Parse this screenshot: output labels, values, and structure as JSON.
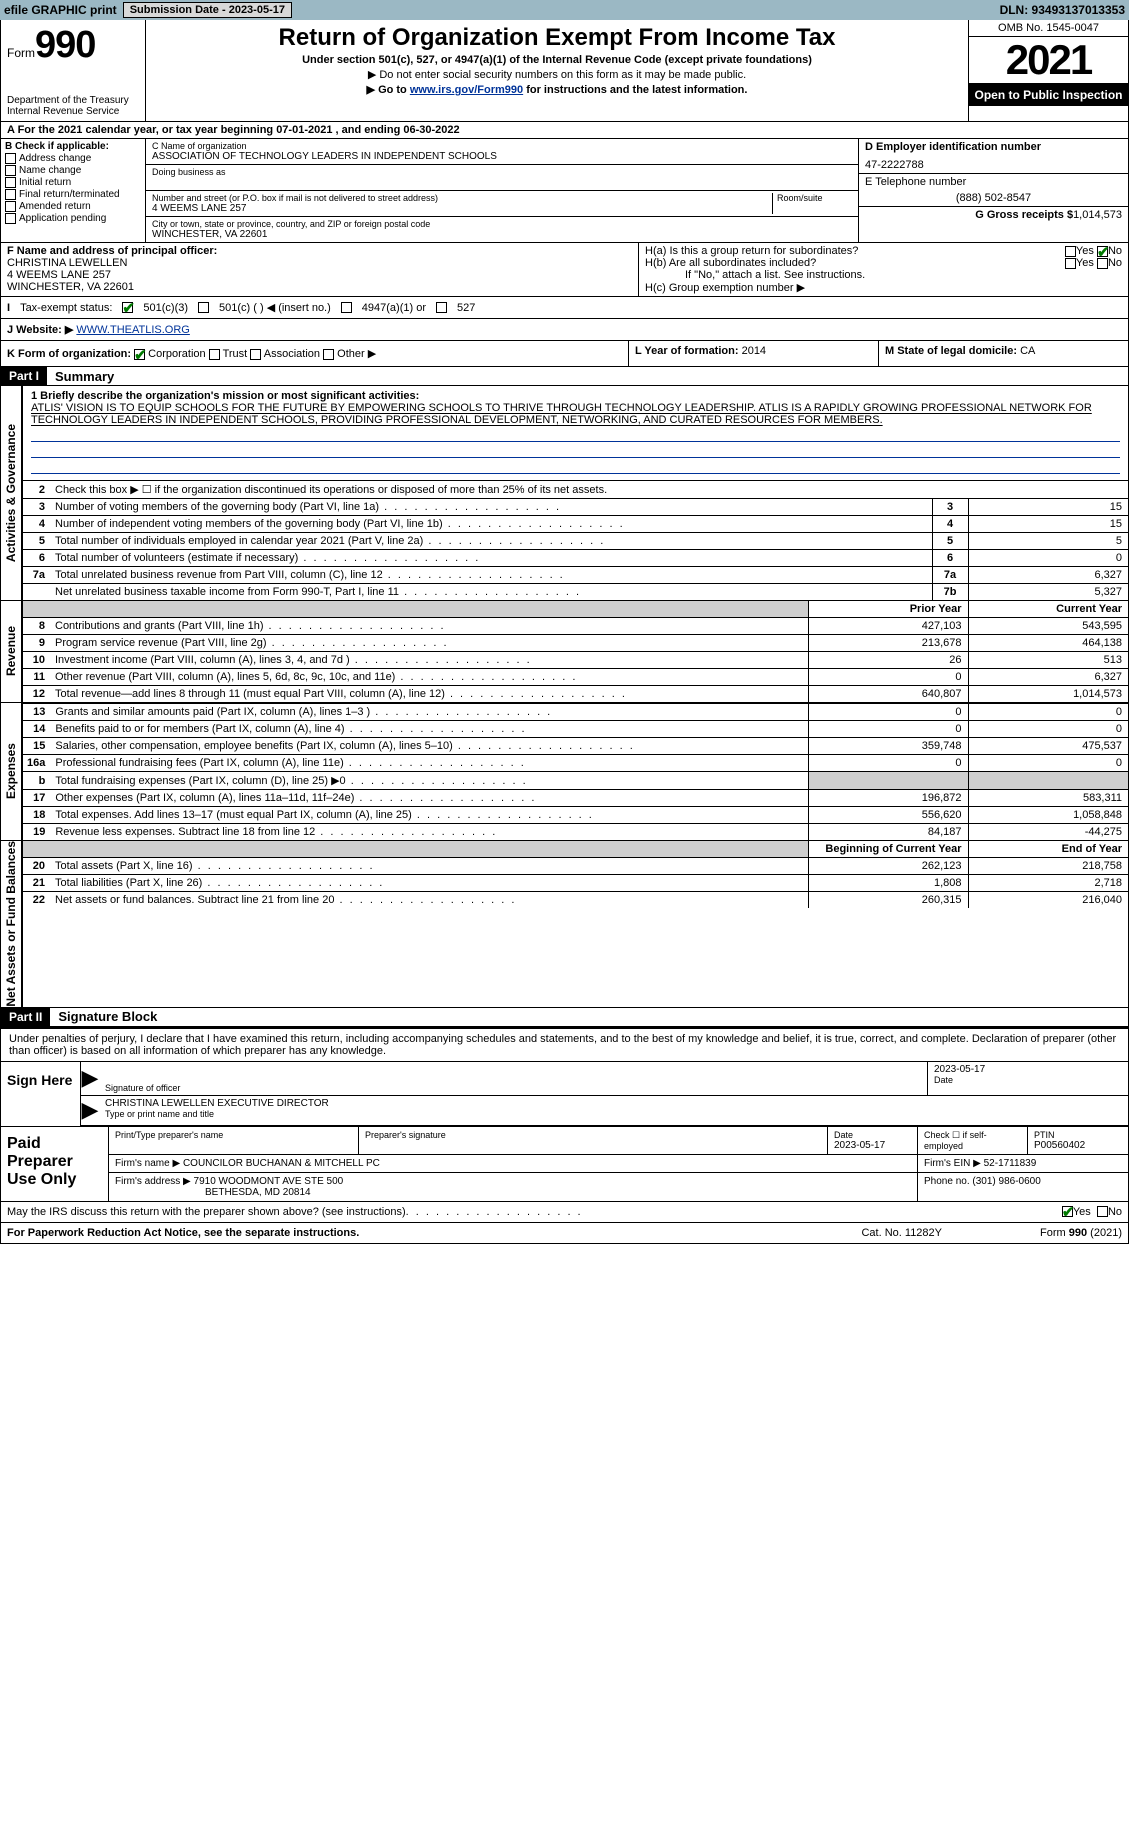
{
  "top_bar": {
    "efile": "efile GRAPHIC print",
    "submission": "Submission Date - 2023-05-17",
    "dln": "DLN: 93493137013353"
  },
  "header": {
    "form_prefix": "Form",
    "form_number": "990",
    "title": "Return of Organization Exempt From Income Tax",
    "subtitle": "Under section 501(c), 527, or 4947(a)(1) of the Internal Revenue Code (except private foundations)",
    "note1": "▶ Do not enter social security numbers on this form as it may be made public.",
    "note2_prefix": "▶ Go to ",
    "note2_link": "www.irs.gov/Form990",
    "note2_suffix": " for instructions and the latest information.",
    "dept": "Department of the Treasury",
    "irs": "Internal Revenue Service",
    "omb": "OMB No. 1545-0047",
    "year": "2021",
    "inspect": "Open to Public Inspection"
  },
  "row_a": "A For the 2021 calendar year, or tax year beginning 07-01-2021    , and ending 06-30-2022",
  "col_b": {
    "title": "B Check if applicable:",
    "items": [
      "Address change",
      "Name change",
      "Initial return",
      "Final return/terminated",
      "Amended return",
      "Application pending"
    ]
  },
  "col_c": {
    "name_label": "C Name of organization",
    "name": "ASSOCIATION OF TECHNOLOGY LEADERS IN INDEPENDENT SCHOOLS",
    "dba_label": "Doing business as",
    "addr_label": "Number and street (or P.O. box if mail is not delivered to street address)",
    "room_label": "Room/suite",
    "addr": "4 WEEMS LANE 257",
    "city_label": "City or town, state or province, country, and ZIP or foreign postal code",
    "city": "WINCHESTER, VA  22601"
  },
  "col_de": {
    "d_label": "D Employer identification number",
    "ein": "47-2222788",
    "e_label": "E Telephone number",
    "phone": "(888) 502-8547",
    "g_label": "G Gross receipts $",
    "g_val": "1,014,573"
  },
  "col_f": {
    "label": "F Name and address of principal officer:",
    "name": "CHRISTINA LEWELLEN",
    "addr1": "4 WEEMS LANE 257",
    "addr2": "WINCHESTER, VA  22601"
  },
  "col_h": {
    "ha": "H(a)  Is this a group return for subordinates?",
    "hb": "H(b)  Are all subordinates included?",
    "hb_note": "If \"No,\" attach a list. See instructions.",
    "hc": "H(c)  Group exemption number ▶",
    "yes": "Yes",
    "no": "No"
  },
  "row_i": {
    "label": "Tax-exempt status:",
    "opt1": "501(c)(3)",
    "opt2": "501(c) (   ) ◀ (insert no.)",
    "opt3": "4947(a)(1) or",
    "opt4": "527"
  },
  "row_j": {
    "label": "J   Website: ▶",
    "url": "WWW.THEATLIS.ORG"
  },
  "row_k": {
    "label": "K Form of organization:",
    "opts": [
      "Corporation",
      "Trust",
      "Association",
      "Other ▶"
    ]
  },
  "row_l": {
    "label": "L Year of formation:",
    "val": "2014"
  },
  "row_m": {
    "label": "M State of legal domicile:",
    "val": "CA"
  },
  "part1": {
    "hdr": "Part I",
    "title": "Summary",
    "vtab1": "Activities & Governance",
    "vtab2": "Revenue",
    "vtab3": "Expenses",
    "vtab4": "Net Assets or Fund Balances",
    "line1_label": "1  Briefly describe the organization's mission or most significant activities:",
    "mission": "ATLIS' VISION IS TO EQUIP SCHOOLS FOR THE FUTURE BY EMPOWERING SCHOOLS TO THRIVE THROUGH TECHNOLOGY LEADERSHIP. ATLIS IS A RAPIDLY GROWING PROFESSIONAL NETWORK FOR TECHNOLOGY LEADERS IN INDEPENDENT SCHOOLS, PROVIDING PROFESSIONAL DEVELOPMENT, NETWORKING, AND CURATED RESOURCES FOR MEMBERS.",
    "line2": "Check this box ▶ ☐ if the organization discontinued its operations or disposed of more than 25% of its net assets.",
    "rows_single": [
      {
        "n": "3",
        "t": "Number of voting members of the governing body (Part VI, line 1a)",
        "box": "3",
        "v": "15"
      },
      {
        "n": "4",
        "t": "Number of independent voting members of the governing body (Part VI, line 1b)",
        "box": "4",
        "v": "15"
      },
      {
        "n": "5",
        "t": "Total number of individuals employed in calendar year 2021 (Part V, line 2a)",
        "box": "5",
        "v": "5"
      },
      {
        "n": "6",
        "t": "Total number of volunteers (estimate if necessary)",
        "box": "6",
        "v": "0"
      },
      {
        "n": "7a",
        "t": "Total unrelated business revenue from Part VIII, column (C), line 12",
        "box": "7a",
        "v": "6,327"
      },
      {
        "n": "",
        "t": "Net unrelated business taxable income from Form 990-T, Part I, line 11",
        "box": "7b",
        "v": "5,327"
      }
    ],
    "col_hdr_prior": "Prior Year",
    "col_hdr_curr": "Current Year",
    "rows_rev": [
      {
        "n": "8",
        "t": "Contributions and grants (Part VIII, line 1h)",
        "p": "427,103",
        "c": "543,595"
      },
      {
        "n": "9",
        "t": "Program service revenue (Part VIII, line 2g)",
        "p": "213,678",
        "c": "464,138"
      },
      {
        "n": "10",
        "t": "Investment income (Part VIII, column (A), lines 3, 4, and 7d )",
        "p": "26",
        "c": "513"
      },
      {
        "n": "11",
        "t": "Other revenue (Part VIII, column (A), lines 5, 6d, 8c, 9c, 10c, and 11e)",
        "p": "0",
        "c": "6,327"
      },
      {
        "n": "12",
        "t": "Total revenue—add lines 8 through 11 (must equal Part VIII, column (A), line 12)",
        "p": "640,807",
        "c": "1,014,573"
      }
    ],
    "rows_exp": [
      {
        "n": "13",
        "t": "Grants and similar amounts paid (Part IX, column (A), lines 1–3 )",
        "p": "0",
        "c": "0"
      },
      {
        "n": "14",
        "t": "Benefits paid to or for members (Part IX, column (A), line 4)",
        "p": "0",
        "c": "0"
      },
      {
        "n": "15",
        "t": "Salaries, other compensation, employee benefits (Part IX, column (A), lines 5–10)",
        "p": "359,748",
        "c": "475,537"
      },
      {
        "n": "16a",
        "t": "Professional fundraising fees (Part IX, column (A), line 11e)",
        "p": "0",
        "c": "0"
      },
      {
        "n": "b",
        "t": "Total fundraising expenses (Part IX, column (D), line 25) ▶0",
        "p": "",
        "c": "",
        "shade": true
      },
      {
        "n": "17",
        "t": "Other expenses (Part IX, column (A), lines 11a–11d, 11f–24e)",
        "p": "196,872",
        "c": "583,311"
      },
      {
        "n": "18",
        "t": "Total expenses. Add lines 13–17 (must equal Part IX, column (A), line 25)",
        "p": "556,620",
        "c": "1,058,848"
      },
      {
        "n": "19",
        "t": "Revenue less expenses. Subtract line 18 from line 12",
        "p": "84,187",
        "c": "-44,275"
      }
    ],
    "col_hdr_begin": "Beginning of Current Year",
    "col_hdr_end": "End of Year",
    "rows_net": [
      {
        "n": "20",
        "t": "Total assets (Part X, line 16)",
        "p": "262,123",
        "c": "218,758"
      },
      {
        "n": "21",
        "t": "Total liabilities (Part X, line 26)",
        "p": "1,808",
        "c": "2,718"
      },
      {
        "n": "22",
        "t": "Net assets or fund balances. Subtract line 21 from line 20",
        "p": "260,315",
        "c": "216,040"
      }
    ]
  },
  "part2": {
    "hdr": "Part II",
    "title": "Signature Block",
    "intro": "Under penalties of perjury, I declare that I have examined this return, including accompanying schedules and statements, and to the best of my knowledge and belief, it is true, correct, and complete. Declaration of preparer (other than officer) is based on all information of which preparer has any knowledge.",
    "sign_here": "Sign Here",
    "sig_officer": "Signature of officer",
    "sig_date": "2023-05-17",
    "date_label": "Date",
    "officer_name": "CHRISTINA LEWELLEN  EXECUTIVE DIRECTOR",
    "type_name": "Type or print name and title",
    "paid": "Paid Preparer Use Only",
    "prep_name_label": "Print/Type preparer's name",
    "prep_sig_label": "Preparer's signature",
    "prep_date_label": "Date",
    "prep_date": "2023-05-17",
    "check_if": "Check ☐ if self-employed",
    "ptin_label": "PTIN",
    "ptin": "P00560402",
    "firm_name_label": "Firm's name    ▶",
    "firm_name": "COUNCILOR BUCHANAN & MITCHELL PC",
    "firm_ein_label": "Firm's EIN ▶",
    "firm_ein": "52-1711839",
    "firm_addr_label": "Firm's address ▶",
    "firm_addr1": "7910 WOODMONT AVE STE 500",
    "firm_addr2": "BETHESDA, MD  20814",
    "phone_label": "Phone no.",
    "phone": "(301) 986-0600",
    "may_irs": "May the IRS discuss this return with the preparer shown above? (see instructions)",
    "yes": "Yes",
    "no": "No"
  },
  "footer": {
    "left": "For Paperwork Reduction Act Notice, see the separate instructions.",
    "mid": "Cat. No. 11282Y",
    "right": "Form 990 (2021)"
  }
}
